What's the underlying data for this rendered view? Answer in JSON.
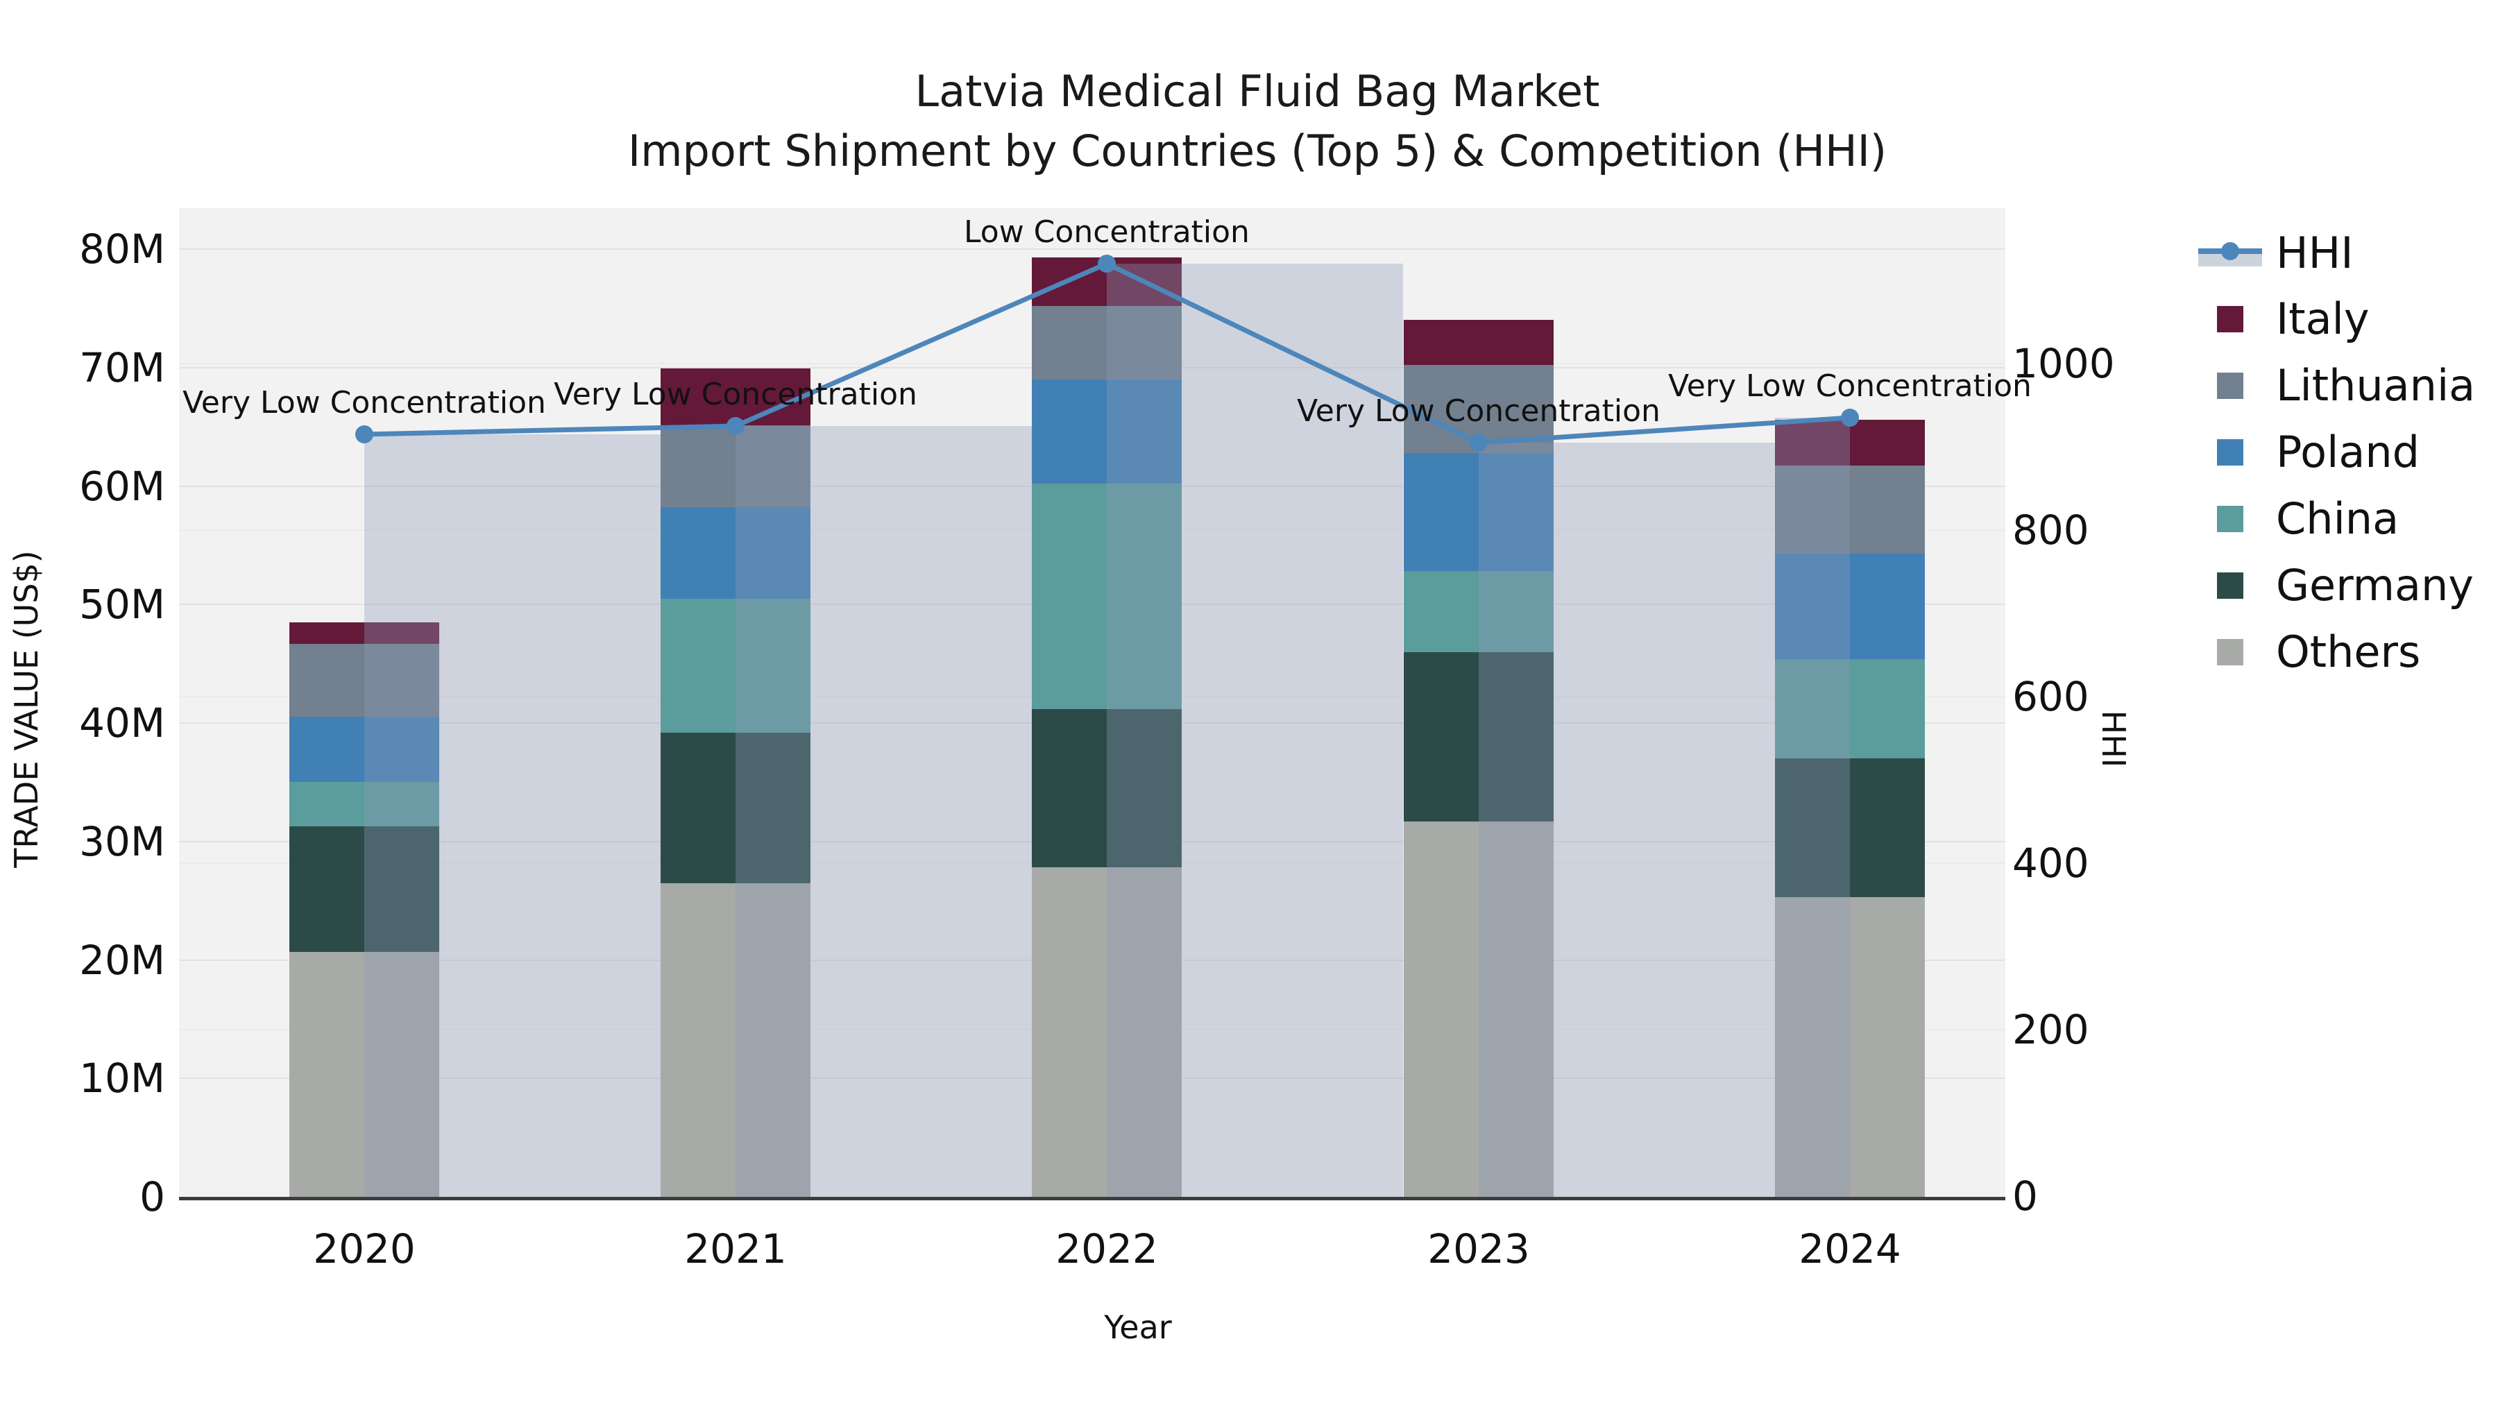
{
  "title": {
    "line1": "Latvia Medical Fluid Bag Market",
    "line2": "Import Shipment by Countries (Top 5) & Competition (HHI)"
  },
  "chart_data": {
    "type": "bar",
    "subtype": "stacked-bar-with-line-overlay",
    "categories": [
      "2020",
      "2021",
      "2022",
      "2023",
      "2024"
    ],
    "xlabel": "Year",
    "ylabel_left": "TRADE VALUE (US$)",
    "ylabel_right": "HHI",
    "y_left_unit": "million US$",
    "y_left_range": [
      0,
      80
    ],
    "y_left_ticks": [
      "0",
      "10M",
      "20M",
      "30M",
      "40M",
      "50M",
      "60M",
      "70M",
      "80M"
    ],
    "y_right_range": [
      0,
      1000
    ],
    "y_right_ticks": [
      "0",
      "200",
      "400",
      "600",
      "800",
      "1000"
    ],
    "grid": true,
    "legend_position": "right",
    "series": [
      {
        "name": "Others",
        "color": "#a7aaa7",
        "values": [
          20.7,
          26.5,
          27.8,
          31.7,
          25.3
        ]
      },
      {
        "name": "Germany",
        "color": "#2c4a48",
        "values": [
          10.6,
          12.7,
          13.4,
          14.3,
          11.7
        ]
      },
      {
        "name": "China",
        "color": "#5b9c9d",
        "values": [
          3.7,
          11.3,
          19.0,
          6.8,
          8.4
        ]
      },
      {
        "name": "Poland",
        "color": "#4180b4",
        "values": [
          5.5,
          7.7,
          8.8,
          10.0,
          8.9
        ]
      },
      {
        "name": "Lithuania",
        "color": "#72808f",
        "values": [
          6.2,
          6.9,
          6.2,
          7.4,
          7.4
        ]
      },
      {
        "name": "Italy",
        "color": "#641939",
        "values": [
          1.8,
          4.8,
          4.1,
          3.8,
          3.9
        ]
      }
    ],
    "bar_totals": [
      48.5,
      69.9,
      79.3,
      74.0,
      65.6
    ],
    "line_series": {
      "name": "HHI",
      "color": "#4d86ba",
      "band_color": "rgba(140,156,182,0.35)",
      "values": [
        915,
        925,
        1120,
        905,
        935
      ],
      "annotations": [
        "Very Low Concentration",
        "Very Low Concentration",
        "Low Concentration",
        "Very Low Concentration",
        "Very Low Concentration"
      ]
    },
    "legend_entries": [
      "HHI",
      "Italy",
      "Lithuania",
      "Poland",
      "China",
      "Germany",
      "Others"
    ]
  }
}
